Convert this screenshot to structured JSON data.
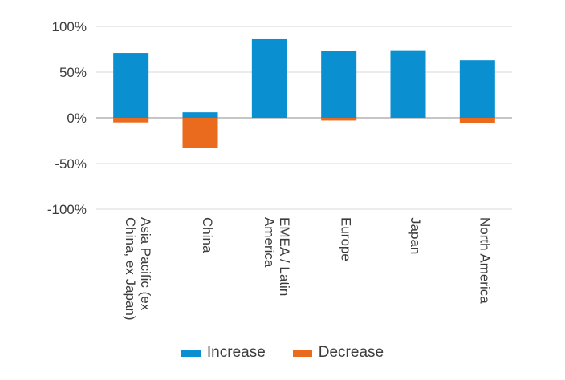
{
  "chart_data": {
    "type": "bar",
    "stacked": true,
    "categories": [
      "Asia Pacific (ex China, ex Japan)",
      "China",
      "EMEA / Latin America",
      "Europe",
      "Japan",
      "North America"
    ],
    "category_lines": [
      [
        "Asia Pacific (ex",
        "China, ex Japan)"
      ],
      [
        "China"
      ],
      [
        "EMEA / Latin",
        "America"
      ],
      [
        "Europe"
      ],
      [
        "Japan"
      ],
      [
        "North America"
      ]
    ],
    "series": [
      {
        "name": "Increase",
        "color": "#0a8fd1",
        "values": [
          71,
          6,
          86,
          73,
          74,
          63
        ]
      },
      {
        "name": "Decrease",
        "color": "#ea6b1d",
        "values": [
          -5,
          -33,
          0,
          -3,
          0,
          -6
        ]
      }
    ],
    "ylim": [
      -100,
      100
    ],
    "yticks": [
      100,
      50,
      0,
      -50,
      -100
    ],
    "ytick_labels": [
      "100%",
      "50%",
      "0%",
      "-50%",
      "-100%"
    ],
    "grid": true,
    "legend_position": "bottom",
    "title": "",
    "xlabel": "",
    "ylabel": ""
  }
}
